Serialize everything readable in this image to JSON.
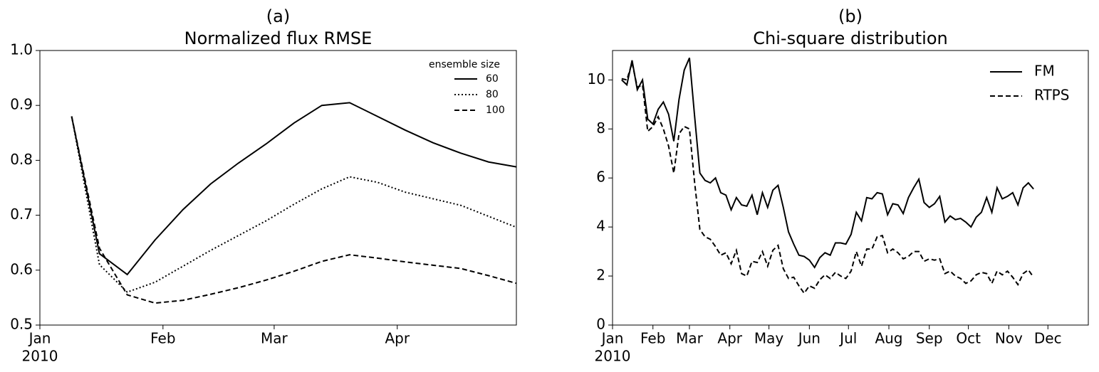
{
  "chart_data": [
    {
      "type": "line",
      "panel_label": "(a)",
      "title": "Normalized flux RMSE",
      "x": [
        8,
        15,
        22,
        29,
        36,
        43,
        50,
        57,
        64,
        71,
        78,
        85,
        92,
        99,
        106,
        113,
        120
      ],
      "series": [
        {
          "name": "60",
          "color": "#000000",
          "dash": "solid",
          "values": [
            0.88,
            0.63,
            0.592,
            0.655,
            0.71,
            0.757,
            0.795,
            0.83,
            0.868,
            0.9,
            0.905,
            0.88,
            0.855,
            0.832,
            0.813,
            0.797,
            0.788
          ]
        },
        {
          "name": "80",
          "color": "#000000",
          "dash": "dotted",
          "values": [
            0.88,
            0.61,
            0.56,
            0.578,
            0.607,
            0.636,
            0.663,
            0.69,
            0.72,
            0.748,
            0.77,
            0.76,
            0.742,
            0.73,
            0.718,
            0.698,
            0.678
          ]
        },
        {
          "name": "100",
          "color": "#000000",
          "dash": "dashed",
          "values": [
            0.88,
            0.64,
            0.555,
            0.54,
            0.545,
            0.556,
            0.568,
            0.582,
            0.598,
            0.616,
            0.628,
            0.622,
            0.615,
            0.609,
            0.603,
            0.59,
            0.576
          ]
        }
      ],
      "legend_title": "ensemble size",
      "legend": "upper right",
      "xlim": [
        0,
        120
      ],
      "xticks": [
        {
          "value": 0,
          "label": "Jan"
        },
        {
          "value": 31,
          "label": "Feb"
        },
        {
          "value": 59,
          "label": "Mar"
        },
        {
          "value": 90,
          "label": "Apr"
        }
      ],
      "year": "2010",
      "ylim": [
        0.5,
        1.0
      ],
      "yticks": [
        0.5,
        0.6,
        0.7,
        0.8,
        0.9,
        {
          "value": 1,
          "label": "1.0"
        }
      ]
    },
    {
      "type": "line",
      "panel_label": "(b)",
      "title": "Chi-square distribution",
      "x": [
        7,
        11,
        15,
        19,
        23,
        27,
        31,
        35,
        39,
        43,
        47,
        51,
        55,
        59,
        63,
        67,
        71,
        75,
        79,
        83,
        87,
        91,
        95,
        99,
        103,
        107,
        111,
        115,
        119,
        123,
        127,
        131,
        135,
        139,
        143,
        147,
        151,
        155,
        159,
        163,
        167,
        171,
        175,
        179,
        183,
        187,
        191,
        195,
        199,
        203,
        207,
        211,
        215,
        219,
        223,
        227,
        231,
        235,
        239,
        243,
        247,
        251,
        255,
        259,
        263,
        267,
        271,
        275,
        279,
        283,
        287,
        291,
        295,
        299,
        303,
        307,
        311,
        315,
        319,
        323
      ],
      "series": [
        {
          "name": "FM",
          "color": "#000000",
          "dash": "solid",
          "values": [
            10.0,
            9.8,
            10.8,
            9.6,
            10.0,
            8.4,
            8.2,
            8.8,
            9.1,
            8.6,
            7.5,
            9.2,
            10.4,
            10.9,
            8.5,
            6.2,
            5.9,
            5.8,
            6.0,
            5.4,
            5.3,
            4.7,
            5.2,
            4.9,
            4.85,
            5.3,
            4.5,
            5.4,
            4.8,
            5.5,
            5.7,
            4.8,
            3.8,
            3.3,
            2.85,
            2.8,
            2.65,
            2.35,
            2.75,
            2.95,
            2.85,
            3.35,
            3.35,
            3.3,
            3.7,
            4.6,
            4.25,
            5.2,
            5.15,
            5.4,
            5.35,
            4.5,
            4.95,
            4.9,
            4.55,
            5.2,
            5.6,
            5.95,
            5.0,
            4.8,
            4.95,
            5.25,
            4.2,
            4.45,
            4.3,
            4.35,
            4.2,
            4.0,
            4.4,
            4.6,
            5.2,
            4.6,
            5.6,
            5.15,
            5.25,
            5.4,
            4.9,
            5.6,
            5.8,
            5.55
          ]
        },
        {
          "name": "RTPS",
          "color": "#000000",
          "dash": "dashed",
          "values": [
            10.05,
            10.0,
            10.7,
            9.7,
            9.8,
            7.9,
            8.1,
            8.5,
            8.0,
            7.3,
            6.2,
            7.8,
            8.1,
            8.0,
            5.8,
            3.9,
            3.6,
            3.5,
            3.2,
            2.85,
            2.95,
            2.5,
            3.05,
            2.1,
            2.0,
            2.6,
            2.55,
            3.0,
            2.4,
            3.05,
            3.25,
            2.3,
            1.9,
            1.95,
            1.6,
            1.3,
            1.6,
            1.5,
            1.85,
            2.05,
            1.9,
            2.15,
            2.0,
            1.9,
            2.2,
            3.0,
            2.4,
            3.1,
            3.1,
            3.6,
            3.65,
            2.95,
            3.1,
            2.95,
            2.7,
            2.8,
            3.0,
            3.0,
            2.6,
            2.7,
            2.65,
            2.7,
            2.1,
            2.2,
            2.0,
            1.9,
            1.7,
            1.8,
            2.05,
            2.15,
            2.1,
            1.7,
            2.2,
            2.05,
            2.2,
            1.95,
            1.65,
            2.1,
            2.25,
            1.95
          ]
        }
      ],
      "legend": "upper right",
      "xlim": [
        0,
        365
      ],
      "xticks": [
        {
          "value": 0,
          "label": "Jan"
        },
        {
          "value": 31,
          "label": "Feb"
        },
        {
          "value": 59,
          "label": "Mar"
        },
        {
          "value": 90,
          "label": "Apr"
        },
        {
          "value": 120,
          "label": "May"
        },
        {
          "value": 151,
          "label": "Jun"
        },
        {
          "value": 181,
          "label": "Jul"
        },
        {
          "value": 212,
          "label": "Aug"
        },
        {
          "value": 243,
          "label": "Sep"
        },
        {
          "value": 273,
          "label": "Oct"
        },
        {
          "value": 304,
          "label": "Nov"
        },
        {
          "value": 334,
          "label": "Dec"
        }
      ],
      "year": "2010",
      "ylim": [
        0,
        11.2
      ],
      "yticks": [
        0,
        2,
        4,
        6,
        8,
        10
      ]
    }
  ]
}
